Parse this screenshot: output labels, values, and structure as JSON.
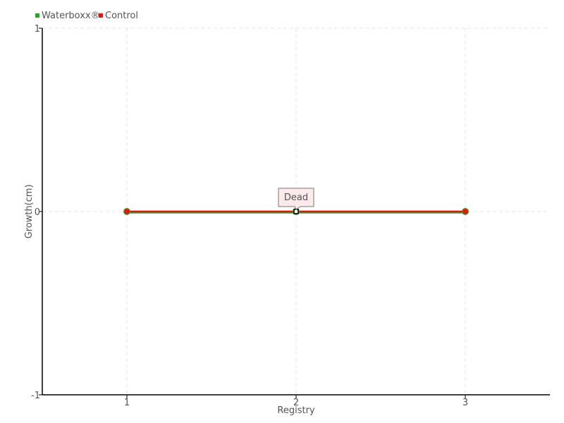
{
  "chart_data": {
    "type": "line",
    "title": "",
    "xlabel": "Registry",
    "ylabel": "Growth(cm)",
    "x": [
      1,
      2,
      3
    ],
    "xlim": [
      0.5,
      3.5
    ],
    "ylim": [
      -1,
      1
    ],
    "xticks": [
      "1",
      "2",
      "3"
    ],
    "yticks": [
      "-1",
      "0",
      "1"
    ],
    "grid": true,
    "legend_position": "top-left",
    "series": [
      {
        "name": "Waterboxx®",
        "color": "#22aa22",
        "values": [
          0,
          0,
          0
        ]
      },
      {
        "name": "Control",
        "color": "#ee1111",
        "values": [
          0,
          0,
          0
        ]
      }
    ],
    "annotations": [
      {
        "x": 2,
        "y": 0,
        "text": "Dead"
      }
    ]
  }
}
